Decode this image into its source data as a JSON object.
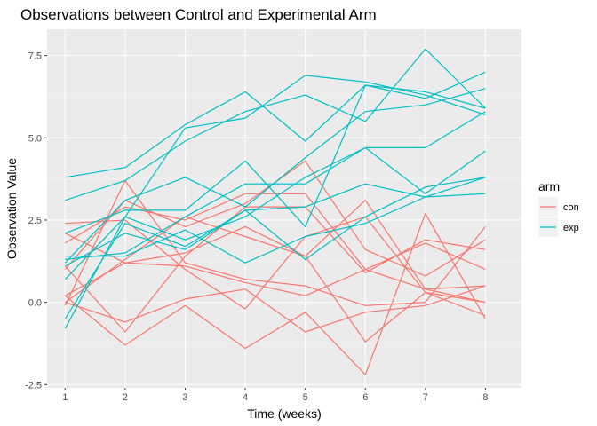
{
  "chart_data": {
    "type": "line",
    "title": "Observations between Control and Experimental Arm",
    "xlabel": "Time (weeks)",
    "ylabel": "Observation Value",
    "xlim": [
      0.7,
      8.6
    ],
    "ylim": [
      -2.6,
      8.3
    ],
    "x_ticks": [
      1,
      2,
      3,
      4,
      5,
      6,
      7,
      8
    ],
    "x_tick_labels": [
      "1",
      "2",
      "3",
      "4",
      "5",
      "6",
      "7",
      "8"
    ],
    "y_ticks": [
      -2.5,
      0,
      2.5,
      5,
      7.5
    ],
    "y_tick_labels": [
      "-2.5",
      "0.0",
      "2.5",
      "5.0",
      "7.5"
    ],
    "grid": true,
    "legend": {
      "title": "arm",
      "placement": "right",
      "entries": [
        {
          "label": "con",
          "color": "#F8766D"
        },
        {
          "label": "exp",
          "color": "#00BFC4"
        }
      ]
    },
    "x": [
      1,
      2,
      3,
      4,
      5,
      6,
      7,
      8
    ],
    "series": [
      {
        "group": "con",
        "color": "#F8766D",
        "values": [
          0.2,
          -1.3,
          -0.1,
          -1.4,
          -0.3,
          -2.2,
          2.7,
          -0.5
        ]
      },
      {
        "group": "con",
        "color": "#F8766D",
        "values": [
          1.1,
          -0.9,
          1.4,
          2.9,
          2.9,
          0.9,
          1.9,
          1.6
        ]
      },
      {
        "group": "con",
        "color": "#F8766D",
        "values": [
          0.0,
          -0.6,
          0.1,
          0.4,
          -0.9,
          -0.3,
          -0.1,
          0.5
        ]
      },
      {
        "group": "con",
        "color": "#F8766D",
        "values": [
          2.4,
          2.5,
          1.0,
          -0.2,
          2.0,
          2.6,
          0.3,
          0.0
        ]
      },
      {
        "group": "con",
        "color": "#F8766D",
        "values": [
          1.8,
          2.9,
          2.5,
          3.3,
          3.3,
          1.0,
          1.8,
          1.0
        ]
      },
      {
        "group": "con",
        "color": "#F8766D",
        "values": [
          -0.1,
          3.7,
          1.2,
          0.7,
          0.5,
          -0.1,
          0.0,
          2.3
        ]
      },
      {
        "group": "con",
        "color": "#F8766D",
        "values": [
          0.2,
          1.2,
          1.1,
          0.6,
          0.2,
          1.0,
          0.4,
          0.0
        ]
      },
      {
        "group": "con",
        "color": "#F8766D",
        "values": [
          2.1,
          1.2,
          1.5,
          2.3,
          1.4,
          3.1,
          0.4,
          0.5
        ]
      },
      {
        "group": "con",
        "color": "#F8766D",
        "values": [
          1.0,
          3.1,
          2.3,
          3.0,
          4.3,
          1.6,
          0.8,
          1.9
        ]
      },
      {
        "group": "con",
        "color": "#F8766D",
        "values": [
          0.0,
          1.3,
          2.6,
          2.0,
          1.4,
          -1.2,
          0.3,
          -0.4
        ]
      },
      {
        "group": "exp",
        "color": "#00BFC4",
        "values": [
          3.8,
          4.1,
          5.4,
          6.4,
          4.9,
          6.6,
          6.4,
          5.9
        ]
      },
      {
        "group": "exp",
        "color": "#00BFC4",
        "values": [
          3.1,
          3.7,
          4.9,
          5.8,
          6.3,
          5.5,
          7.7,
          5.9
        ]
      },
      {
        "group": "exp",
        "color": "#00BFC4",
        "values": [
          2.1,
          2.8,
          2.8,
          4.3,
          2.3,
          6.6,
          6.2,
          7.0
        ]
      },
      {
        "group": "exp",
        "color": "#00BFC4",
        "values": [
          -0.8,
          2.6,
          5.3,
          5.6,
          6.9,
          6.7,
          6.3,
          5.7
        ]
      },
      {
        "group": "exp",
        "color": "#00BFC4",
        "values": [
          1.2,
          3.1,
          3.8,
          2.9,
          4.4,
          5.8,
          6.0,
          6.5
        ]
      },
      {
        "group": "exp",
        "color": "#00BFC4",
        "values": [
          0.7,
          2.6,
          1.9,
          2.6,
          3.8,
          4.7,
          4.7,
          5.8
        ]
      },
      {
        "group": "exp",
        "color": "#00BFC4",
        "values": [
          1.3,
          1.5,
          2.6,
          3.6,
          3.6,
          4.7,
          3.3,
          4.6
        ]
      },
      {
        "group": "exp",
        "color": "#00BFC4",
        "values": [
          1.4,
          1.4,
          2.2,
          1.2,
          2.0,
          2.4,
          3.2,
          3.8
        ]
      },
      {
        "group": "exp",
        "color": "#00BFC4",
        "values": [
          1.1,
          2.1,
          1.6,
          2.8,
          2.9,
          3.6,
          3.2,
          3.3
        ]
      },
      {
        "group": "exp",
        "color": "#00BFC4",
        "values": [
          -0.5,
          2.4,
          1.7,
          2.8,
          1.3,
          2.6,
          3.5,
          3.8
        ]
      }
    ]
  }
}
